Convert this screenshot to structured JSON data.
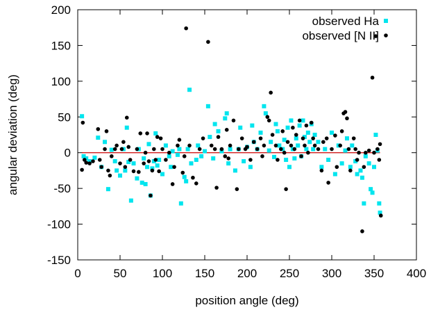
{
  "chart_data": {
    "type": "scatter",
    "title": "",
    "xlabel": "position angle (deg)",
    "ylabel": "angular deviation (deg)",
    "xlim": [
      0,
      400
    ],
    "ylim": [
      -150,
      200
    ],
    "xticks": [
      0,
      50,
      100,
      150,
      200,
      250,
      300,
      350,
      400
    ],
    "yticks": [
      -150,
      -100,
      -50,
      0,
      50,
      100,
      150,
      200
    ],
    "grid": false,
    "legend_position": "top-right",
    "reference_line": {
      "y": 0,
      "x_range": [
        5,
        357
      ],
      "color": "#cc0000"
    },
    "series": [
      {
        "name": "observed Ha",
        "marker": "square",
        "color": "#00e5ee",
        "points": [
          [
            5,
            51
          ],
          [
            7,
            -5
          ],
          [
            10,
            -8
          ],
          [
            14,
            -12
          ],
          [
            20,
            -7
          ],
          [
            24,
            21
          ],
          [
            28,
            -20
          ],
          [
            32,
            15
          ],
          [
            36,
            -51
          ],
          [
            40,
            4
          ],
          [
            44,
            -12
          ],
          [
            46,
            -25
          ],
          [
            50,
            -32
          ],
          [
            54,
            5
          ],
          [
            56,
            -25
          ],
          [
            58,
            35
          ],
          [
            60,
            -13
          ],
          [
            63,
            -67
          ],
          [
            66,
            -15
          ],
          [
            70,
            -36
          ],
          [
            72,
            5
          ],
          [
            76,
            -42
          ],
          [
            78,
            -8
          ],
          [
            80,
            -44
          ],
          [
            82,
            -20
          ],
          [
            84,
            12
          ],
          [
            86,
            -60
          ],
          [
            88,
            -22
          ],
          [
            90,
            -12
          ],
          [
            92,
            27
          ],
          [
            94,
            -18
          ],
          [
            96,
            -10
          ],
          [
            100,
            -30
          ],
          [
            104,
            10
          ],
          [
            108,
            -5
          ],
          [
            110,
            -20
          ],
          [
            112,
            2
          ],
          [
            118,
            -3
          ],
          [
            120,
            5
          ],
          [
            122,
            -71
          ],
          [
            126,
            -34
          ],
          [
            128,
            -40
          ],
          [
            130,
            5
          ],
          [
            132,
            88
          ],
          [
            134,
            -15
          ],
          [
            140,
            -10
          ],
          [
            142,
            10
          ],
          [
            146,
            -5
          ],
          [
            150,
            2
          ],
          [
            154,
            65
          ],
          [
            156,
            22
          ],
          [
            160,
            -8
          ],
          [
            162,
            40
          ],
          [
            166,
            30
          ],
          [
            170,
            2
          ],
          [
            174,
            48
          ],
          [
            176,
            55
          ],
          [
            178,
            -15
          ],
          [
            180,
            5
          ],
          [
            186,
            -25
          ],
          [
            190,
            5
          ],
          [
            192,
            35
          ],
          [
            196,
            -12
          ],
          [
            200,
            8
          ],
          [
            204,
            -20
          ],
          [
            206,
            38
          ],
          [
            208,
            15
          ],
          [
            212,
            5
          ],
          [
            216,
            28
          ],
          [
            220,
            65
          ],
          [
            222,
            55
          ],
          [
            226,
            3
          ],
          [
            228,
            15
          ],
          [
            232,
            -6
          ],
          [
            234,
            40
          ],
          [
            236,
            30
          ],
          [
            238,
            10
          ],
          [
            242,
            5
          ],
          [
            244,
            18
          ],
          [
            246,
            -10
          ],
          [
            248,
            35
          ],
          [
            250,
            -20
          ],
          [
            252,
            45
          ],
          [
            254,
            5
          ],
          [
            256,
            -8
          ],
          [
            258,
            20
          ],
          [
            260,
            10
          ],
          [
            262,
            38
          ],
          [
            264,
            -5
          ],
          [
            266,
            45
          ],
          [
            268,
            22
          ],
          [
            270,
            5
          ],
          [
            272,
            28
          ],
          [
            274,
            15
          ],
          [
            276,
            40
          ],
          [
            278,
            5
          ],
          [
            280,
            25
          ],
          [
            284,
            15
          ],
          [
            288,
            -20
          ],
          [
            292,
            5
          ],
          [
            296,
            -10
          ],
          [
            300,
            28
          ],
          [
            304,
            -30
          ],
          [
            308,
            10
          ],
          [
            312,
            -15
          ],
          [
            316,
            3
          ],
          [
            318,
            20
          ],
          [
            322,
            -20
          ],
          [
            324,
            10
          ],
          [
            328,
            -12
          ],
          [
            330,
            -30
          ],
          [
            334,
            -25
          ],
          [
            336,
            -35
          ],
          [
            338,
            -71
          ],
          [
            340,
            -5
          ],
          [
            344,
            -15
          ],
          [
            346,
            -51
          ],
          [
            348,
            -56
          ],
          [
            350,
            -20
          ],
          [
            352,
            25
          ],
          [
            354,
            3
          ],
          [
            356,
            -71
          ],
          [
            357,
            -84
          ]
        ]
      },
      {
        "name": "observed [N II]",
        "marker": "circle",
        "color": "#000000",
        "points": [
          [
            5,
            -24
          ],
          [
            6,
            42
          ],
          [
            8,
            -10
          ],
          [
            10,
            -14
          ],
          [
            14,
            -15
          ],
          [
            18,
            -12
          ],
          [
            24,
            33
          ],
          [
            26,
            -10
          ],
          [
            28,
            -20
          ],
          [
            32,
            5
          ],
          [
            34,
            30
          ],
          [
            36,
            -25
          ],
          [
            38,
            -32
          ],
          [
            40,
            -5
          ],
          [
            44,
            5
          ],
          [
            46,
            10
          ],
          [
            50,
            -15
          ],
          [
            52,
            5
          ],
          [
            54,
            15
          ],
          [
            56,
            -20
          ],
          [
            58,
            49
          ],
          [
            60,
            8
          ],
          [
            62,
            -10
          ],
          [
            66,
            -26
          ],
          [
            70,
            5
          ],
          [
            72,
            -27
          ],
          [
            74,
            27
          ],
          [
            78,
            -15
          ],
          [
            80,
            0
          ],
          [
            82,
            27
          ],
          [
            84,
            -12
          ],
          [
            86,
            -60
          ],
          [
            88,
            -25
          ],
          [
            90,
            5
          ],
          [
            92,
            -10
          ],
          [
            94,
            22
          ],
          [
            96,
            -26
          ],
          [
            98,
            20
          ],
          [
            100,
            5
          ],
          [
            104,
            -10
          ],
          [
            108,
            0
          ],
          [
            112,
            -44
          ],
          [
            114,
            -20
          ],
          [
            118,
            10
          ],
          [
            120,
            18
          ],
          [
            124,
            -28
          ],
          [
            126,
            -5
          ],
          [
            128,
            174
          ],
          [
            132,
            10
          ],
          [
            136,
            -35
          ],
          [
            140,
            -43
          ],
          [
            144,
            5
          ],
          [
            148,
            20
          ],
          [
            154,
            155
          ],
          [
            158,
            10
          ],
          [
            162,
            5
          ],
          [
            164,
            -49
          ],
          [
            166,
            22
          ],
          [
            170,
            5
          ],
          [
            174,
            -5
          ],
          [
            176,
            32
          ],
          [
            178,
            -8
          ],
          [
            180,
            10
          ],
          [
            184,
            45
          ],
          [
            188,
            -51
          ],
          [
            190,
            5
          ],
          [
            194,
            20
          ],
          [
            198,
            5
          ],
          [
            200,
            8
          ],
          [
            204,
            -10
          ],
          [
            208,
            15
          ],
          [
            212,
            5
          ],
          [
            216,
            20
          ],
          [
            218,
            -5
          ],
          [
            220,
            10
          ],
          [
            224,
            50
          ],
          [
            226,
            45
          ],
          [
            228,
            84
          ],
          [
            230,
            25
          ],
          [
            234,
            10
          ],
          [
            236,
            -10
          ],
          [
            240,
            5
          ],
          [
            242,
            30
          ],
          [
            244,
            0
          ],
          [
            246,
            -51
          ],
          [
            248,
            15
          ],
          [
            252,
            10
          ],
          [
            254,
            35
          ],
          [
            256,
            5
          ],
          [
            258,
            25
          ],
          [
            262,
            45
          ],
          [
            264,
            -5
          ],
          [
            266,
            20
          ],
          [
            268,
            10
          ],
          [
            270,
            38
          ],
          [
            272,
            0
          ],
          [
            276,
            42
          ],
          [
            278,
            20
          ],
          [
            280,
            10
          ],
          [
            284,
            5
          ],
          [
            288,
            -25
          ],
          [
            290,
            15
          ],
          [
            294,
            20
          ],
          [
            296,
            -42
          ],
          [
            300,
            5
          ],
          [
            304,
            24
          ],
          [
            306,
            -20
          ],
          [
            310,
            10
          ],
          [
            312,
            30
          ],
          [
            314,
            55
          ],
          [
            316,
            57
          ],
          [
            318,
            48
          ],
          [
            320,
            5
          ],
          [
            322,
            -25
          ],
          [
            326,
            20
          ],
          [
            328,
            5
          ],
          [
            330,
            -10
          ],
          [
            332,
            0
          ],
          [
            336,
            -110
          ],
          [
            338,
            -20
          ],
          [
            340,
            0
          ],
          [
            344,
            3
          ],
          [
            348,
            105
          ],
          [
            350,
            0
          ],
          [
            352,
            163
          ],
          [
            354,
            5
          ],
          [
            356,
            -10
          ],
          [
            357,
            12
          ],
          [
            358,
            -88
          ]
        ]
      }
    ]
  }
}
